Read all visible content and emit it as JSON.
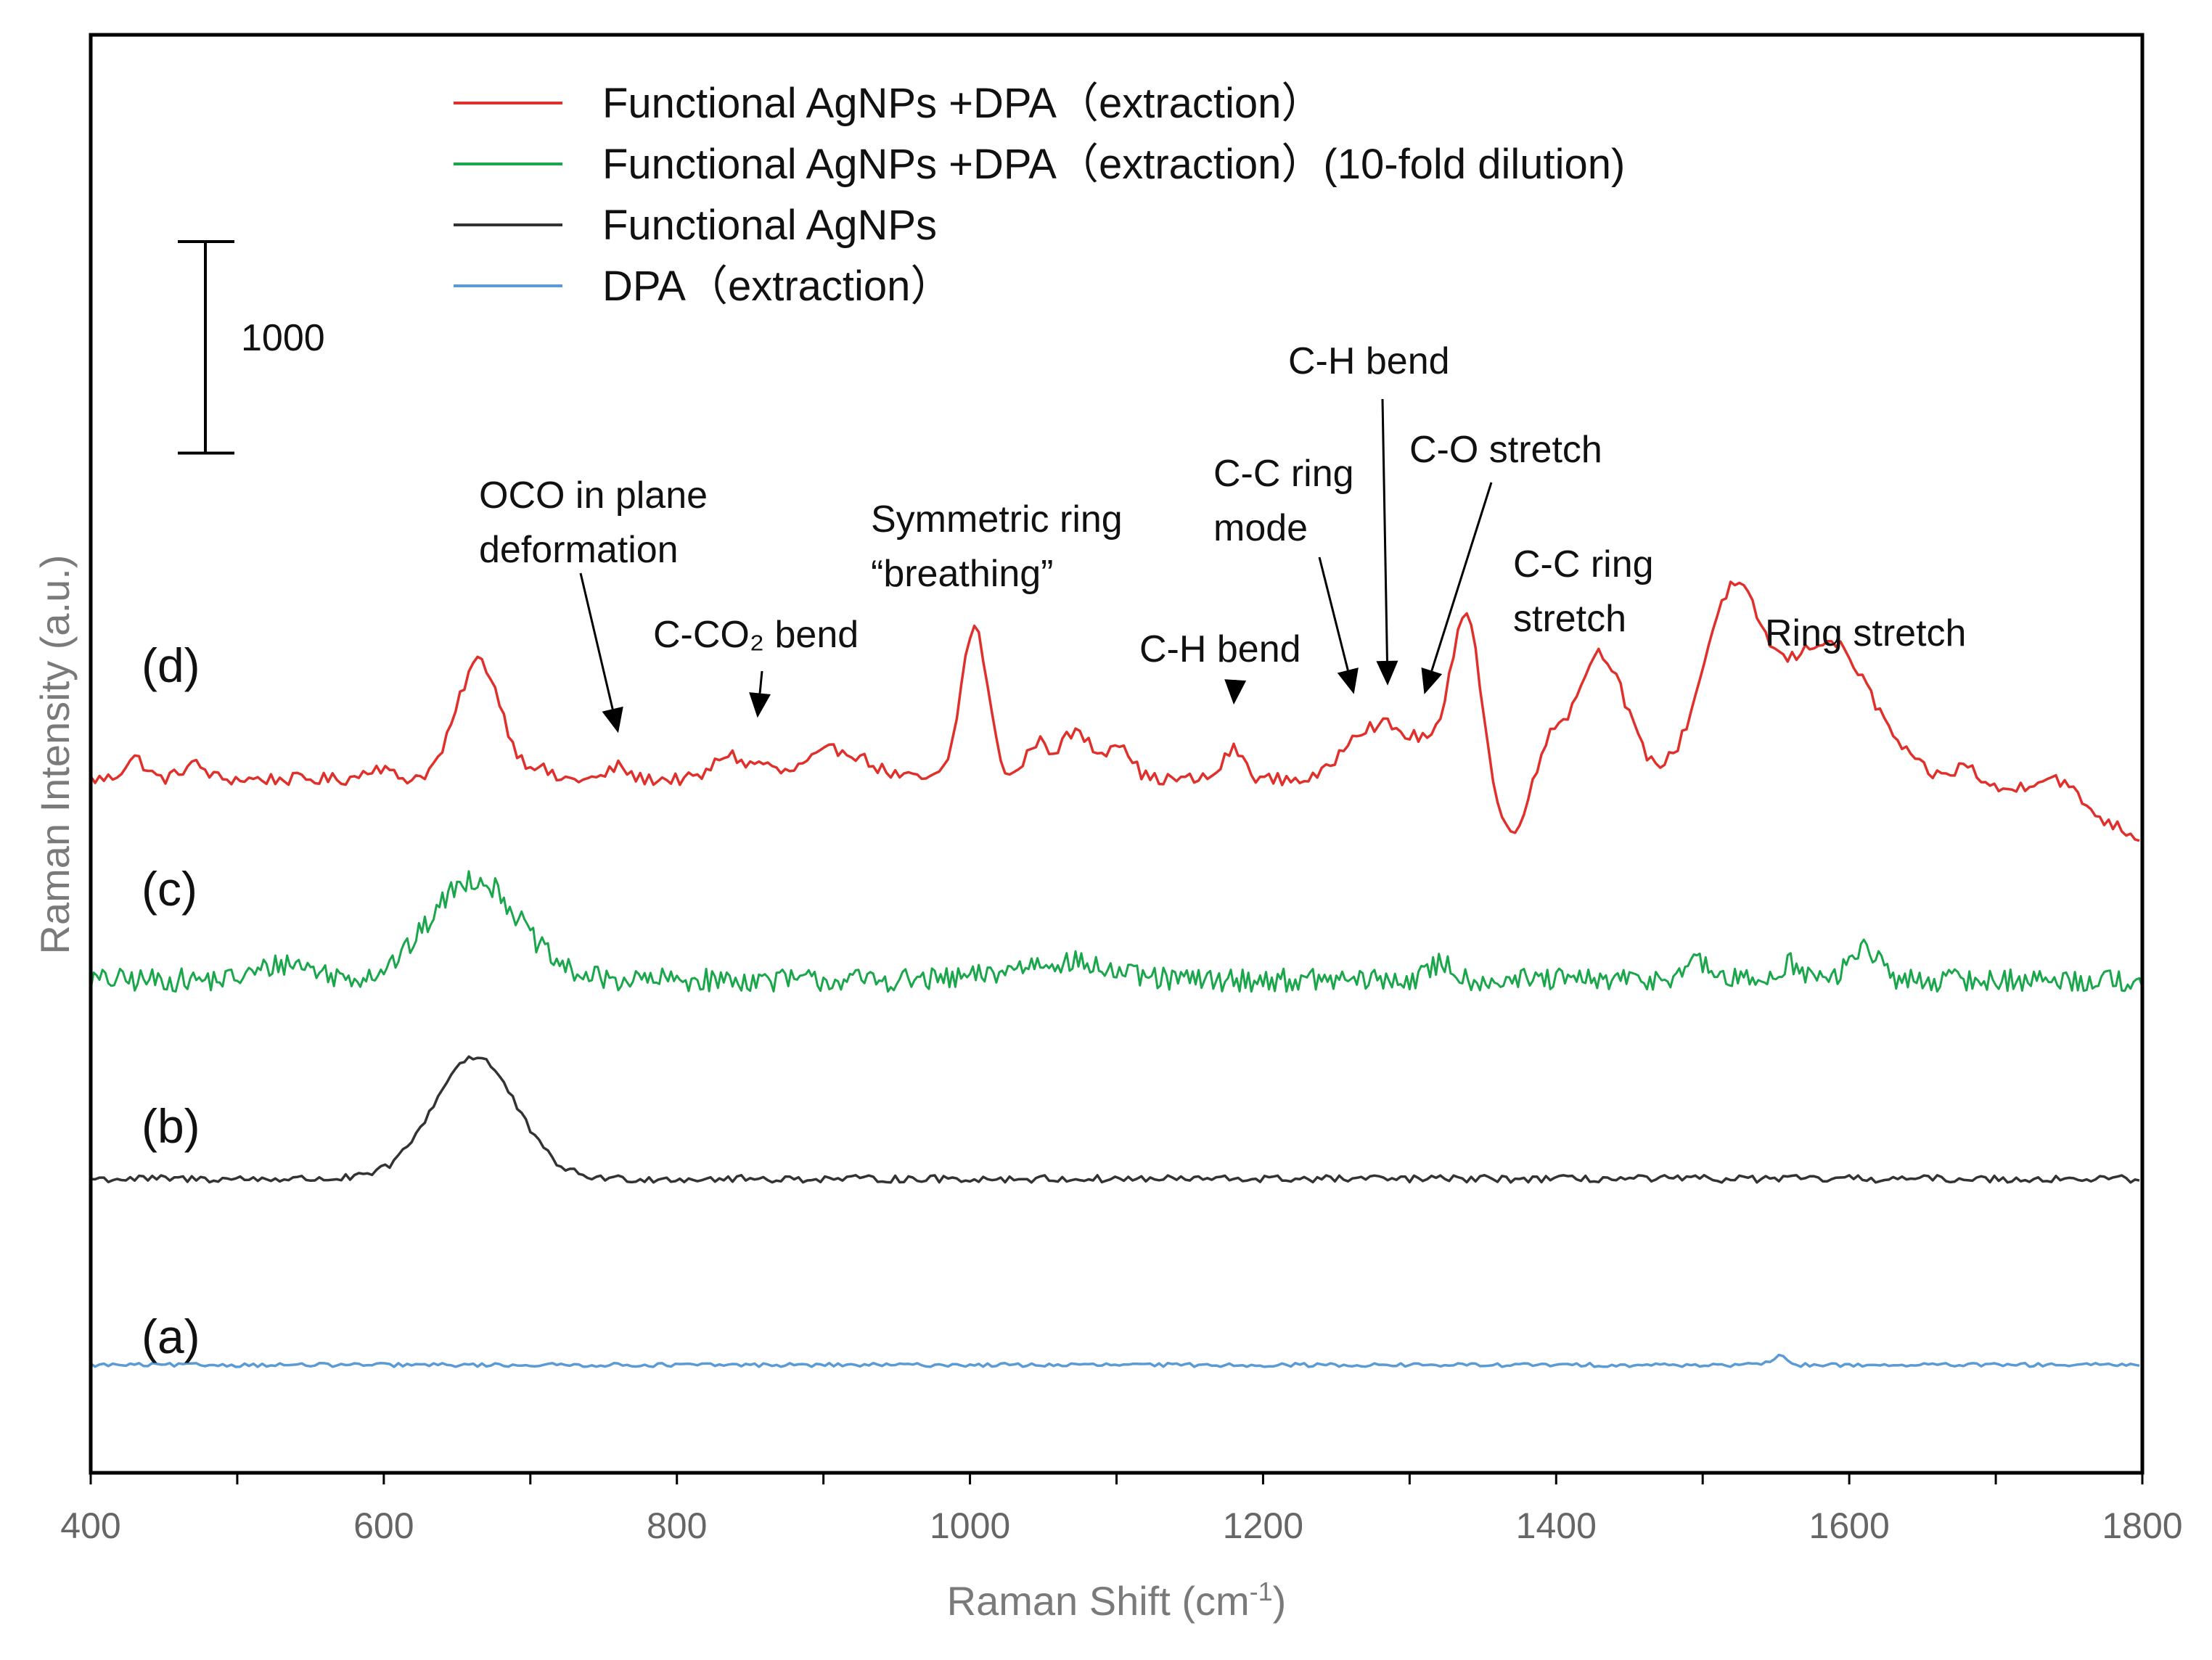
{
  "chart_data": {
    "type": "line",
    "title": "",
    "xlabel": "Raman Shift (cm",
    "xlabel_sup": "-1",
    "xlabel_close": ")",
    "ylabel": "Raman Intensity (a.u.)",
    "xlim": [
      400,
      1800
    ],
    "xticks": [
      "400",
      "600",
      "800",
      "1000",
      "1200",
      "1400",
      "1600",
      "1800"
    ],
    "xtick_values": [
      400,
      600,
      800,
      1000,
      1200,
      1400,
      1600,
      1800
    ],
    "scale_bar_label": "1000",
    "scale_bar_value": 1000,
    "legend_position": "top",
    "series": [
      {
        "key": "d",
        "name": "Functional AgNPs +DPA（extraction）",
        "curve_label": "(d)",
        "color": "#e0302c",
        "baseline": 3280,
        "noise": 60,
        "peaks": [
          [
            430,
            100,
            7
          ],
          [
            470,
            70,
            8
          ],
          [
            595,
            60,
            8
          ],
          [
            665,
            560,
            15
          ],
          [
            705,
            50,
            6
          ],
          [
            760,
            60,
            6
          ],
          [
            835,
            120,
            9
          ],
          [
            858,
            70,
            7
          ],
          [
            910,
            140,
            20
          ],
          [
            1003,
            720,
            9
          ],
          [
            1045,
            160,
            7
          ],
          [
            1072,
            220,
            12
          ],
          [
            1102,
            170,
            8
          ],
          [
            1180,
            140,
            7
          ],
          [
            1262,
            180,
            11
          ],
          [
            1285,
            230,
            12
          ],
          [
            1310,
            160,
            10
          ],
          [
            1338,
            800,
            10
          ],
          [
            1397,
            160,
            7
          ],
          [
            1430,
            600,
            17
          ],
          [
            1520,
            850,
            20
          ],
          [
            1585,
            650,
            30
          ],
          [
            1680,
            90,
            8
          ],
          [
            1740,
            130,
            16
          ]
        ],
        "dips": [
          [
            1368,
            250,
            10
          ]
        ],
        "end_drop": 280
      },
      {
        "key": "c",
        "name": "Functional AgNPs +DPA（extraction）(10-fold dilution)",
        "curve_label": "(c)",
        "color": "#1aa64a",
        "baseline": 2330,
        "noise": 110,
        "peaks": [
          [
            535,
            80,
            18
          ],
          [
            662,
            480,
            30
          ],
          [
            1060,
            90,
            30
          ],
          [
            1322,
            80,
            8
          ],
          [
            1495,
            80,
            10
          ],
          [
            1560,
            80,
            8
          ],
          [
            1610,
            160,
            9
          ]
        ],
        "dips": [],
        "end_drop": 0
      },
      {
        "key": "b",
        "name": "Functional AgNPs",
        "curve_label": "(b)",
        "color": "#333333",
        "baseline": 1390,
        "noise": 35,
        "peaks": [
          [
            662,
            580,
            28
          ]
        ],
        "dips": [],
        "end_drop": 0
      },
      {
        "key": "a",
        "name": "DPA（extraction）",
        "curve_label": "(a)",
        "color": "#5b9bd5",
        "baseline": 510,
        "noise": 18,
        "peaks": [
          [
            1552,
            40,
            5
          ]
        ],
        "dips": [],
        "end_drop": 0
      }
    ],
    "annotations": [
      {
        "key": "oco",
        "lines": [
          "OCO in plane",
          "deformation"
        ],
        "target_x": 760,
        "target_series": "d"
      },
      {
        "key": "cco2",
        "lines": [
          "C-CO₂ bend"
        ],
        "target_x": 855,
        "target_series": "d"
      },
      {
        "key": "sym",
        "lines": [
          "Symmetric ring",
          "“breathing”"
        ],
        "target_x": 1003,
        "target_series": "d"
      },
      {
        "key": "ch1",
        "lines": [
          "C-H bend"
        ],
        "target_x": 1180,
        "target_series": "d"
      },
      {
        "key": "ccring",
        "lines": [
          "C-C ring",
          "mode"
        ],
        "target_x": 1262,
        "target_series": "d"
      },
      {
        "key": "ch2",
        "lines": [
          "C-H bend"
        ],
        "target_x": 1285,
        "target_series": "d"
      },
      {
        "key": "co",
        "lines": [
          "C-O stretch"
        ],
        "target_x": 1310,
        "target_series": "d"
      },
      {
        "key": "ccstretch",
        "lines": [
          "C-C ring",
          "stretch"
        ],
        "target_x": 1430,
        "target_series": "d"
      },
      {
        "key": "ringstretch",
        "lines": [
          "Ring stretch"
        ],
        "target_x": 1520,
        "target_series": "d"
      }
    ]
  }
}
